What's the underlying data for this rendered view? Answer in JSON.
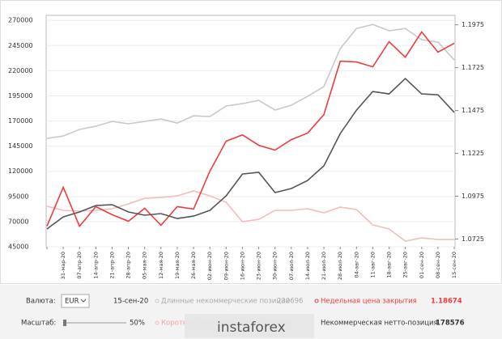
{
  "chart_data": {
    "type": "line",
    "categories": [
      null,
      "31-мар-20",
      "07-апр-20",
      "14-апр-20",
      "21-апр-20",
      "28-апр-20",
      "05-мая-20",
      "12-мая-20",
      "19-мая-20",
      "26-мая-20",
      "02-июн-20",
      "09-июн-20",
      "16-июн-20",
      "23-июн-20",
      "30-июн-20",
      "07-июл-20",
      "14-июл-20",
      "21-июл-20",
      "28-июл-20",
      "04-авг-20",
      "11-авг-20",
      "18-авг-20",
      "25-авг-20",
      "01-сен-20",
      "08-сен-20",
      "15-сен-20"
    ],
    "series": [
      {
        "name": "Длинные некоммерческие позиции",
        "color": "#c9c9c9",
        "values": [
          152700,
          155100,
          161600,
          164800,
          169600,
          167200,
          169600,
          172000,
          168000,
          175200,
          174400,
          184900,
          187300,
          190500,
          180900,
          185700,
          194500,
          204200,
          241900,
          262000,
          266000,
          259600,
          262000,
          250800,
          248400,
          230696
        ]
      },
      {
        "name": "Короткие некоммерческие позиции",
        "color": "#f6bcbc",
        "values": [
          85200,
          81200,
          80400,
          81200,
          82800,
          87600,
          93200,
          94000,
          95600,
          100500,
          95600,
          89200,
          69900,
          72300,
          81200,
          81200,
          82800,
          78800,
          84400,
          82000,
          66700,
          62700,
          50600,
          53800,
          52200,
          52200
        ]
      },
      {
        "name": "Недельная цена закрытия",
        "color": "#f03c3c",
        "axis": "y2",
        "values": [
          1.08,
          1.1027,
          1.08,
          1.0914,
          1.0867,
          1.0829,
          1.0904,
          1.0805,
          1.0914,
          1.09,
          1.1121,
          1.1296,
          1.1333,
          1.1272,
          1.1244,
          1.1305,
          1.1343,
          1.1451,
          1.1763,
          1.1758,
          1.173,
          1.1876,
          1.1786,
          1.1933,
          1.1815,
          1.18674
        ]
      },
      {
        "name": "Некоммерческая нетто-позиция",
        "color": "#555555",
        "values": [
          62700,
          74700,
          79600,
          86000,
          86800,
          79600,
          76400,
          78000,
          73100,
          75500,
          81200,
          95600,
          117300,
          119000,
          98900,
          102900,
          110900,
          125400,
          157500,
          180800,
          199300,
          196900,
          212200,
          196900,
          196100,
          178576
        ]
      }
    ],
    "ylim": [
      45000,
      275000
    ],
    "yticks": [
      45000,
      70000,
      95000,
      120000,
      145000,
      170000,
      195000,
      220000,
      245000,
      270000
    ],
    "y2lim": [
      1.068,
      1.203
    ],
    "y2ticks": [
      1.0725,
      1.0975,
      1.1225,
      1.1475,
      1.1725,
      1.1975
    ],
    "grid": true
  },
  "controls": {
    "currency_label": "Валюта:",
    "currency": "EUR",
    "date": "15-сен-20",
    "scale_label": "Масштаб:",
    "scale": "50%",
    "long_value": 230696,
    "close_value": 1.18674,
    "net_value": 178576,
    "watermark": "instaforex"
  }
}
